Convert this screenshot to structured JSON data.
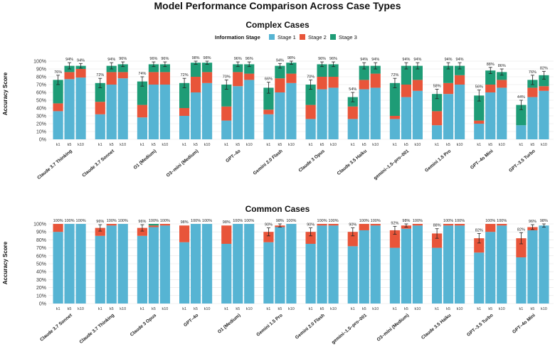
{
  "main_title": "Model Performance Comparison Across Case Types",
  "legend": {
    "title": "Information Stage",
    "entries": [
      {
        "name": "Stage 1",
        "color": "#56B4D3"
      },
      {
        "name": "Stage 2",
        "color": "#E8553A"
      },
      {
        "name": "Stage 3",
        "color": "#1E9C76"
      }
    ]
  },
  "chart_data": [
    {
      "type": "bar",
      "stacked": true,
      "title": "Complex Cases",
      "ylabel": "Accuracy Score",
      "ylim": [
        0,
        100
      ],
      "yticks": [
        "0%",
        "10%",
        "20%",
        "30%",
        "40%",
        "50%",
        "60%",
        "70%",
        "80%",
        "90%",
        "100%"
      ],
      "grid": true,
      "sub_categories": [
        "k1",
        "k5",
        "k10"
      ],
      "groups": [
        {
          "name": "Claude 3.7 Thinking",
          "bars": [
            {
              "k": "k1",
              "s1": 36,
              "s2": 10,
              "s3": 30,
              "err": 6,
              "label": "76%"
            },
            {
              "k": "k5",
              "s1": 77,
              "s2": 9,
              "s3": 8,
              "err": 4,
              "label": "94%"
            },
            {
              "k": "k10",
              "s1": 79,
              "s2": 11,
              "s3": 4,
              "err": 3,
              "label": "94%"
            }
          ]
        },
        {
          "name": "Claude 3.7 Sonnet",
          "bars": [
            {
              "k": "k1",
              "s1": 32,
              "s2": 16,
              "s3": 24,
              "err": 6,
              "label": "72%"
            },
            {
              "k": "k5",
              "s1": 70,
              "s2": 16,
              "s3": 8,
              "err": 4,
              "label": "94%"
            },
            {
              "k": "k10",
              "s1": 78,
              "s2": 8,
              "s3": 10,
              "err": 3,
              "label": "96%"
            }
          ]
        },
        {
          "name": "O1 (Medium)",
          "bars": [
            {
              "k": "k1",
              "s1": 28,
              "s2": 16,
              "s3": 30,
              "err": 6,
              "label": "74%"
            },
            {
              "k": "k5",
              "s1": 70,
              "s2": 16,
              "s3": 10,
              "err": 3,
              "label": "96%"
            },
            {
              "k": "k10",
              "s1": 70,
              "s2": 16,
              "s3": 10,
              "err": 3,
              "label": "96%"
            }
          ]
        },
        {
          "name": "O3–mini (Medium)",
          "bars": [
            {
              "k": "k1",
              "s1": 30,
              "s2": 10,
              "s3": 32,
              "err": 6,
              "label": "72%"
            },
            {
              "k": "k5",
              "s1": 60,
              "s2": 20,
              "s3": 18,
              "err": 2,
              "label": "98%"
            },
            {
              "k": "k10",
              "s1": 72,
              "s2": 14,
              "s3": 12,
              "err": 2,
              "label": "98%"
            }
          ]
        },
        {
          "name": "GPT–4o",
          "bars": [
            {
              "k": "k1",
              "s1": 24,
              "s2": 18,
              "s3": 28,
              "err": 6,
              "label": "70%"
            },
            {
              "k": "k5",
              "s1": 68,
              "s2": 18,
              "s3": 10,
              "err": 3,
              "label": "96%"
            },
            {
              "k": "k10",
              "s1": 76,
              "s2": 8,
              "s3": 12,
              "err": 3,
              "label": "96%"
            }
          ]
        },
        {
          "name": "Gemini 2.0 Flash",
          "bars": [
            {
              "k": "k1",
              "s1": 32,
              "s2": 6,
              "s3": 28,
              "err": 7,
              "label": "66%"
            },
            {
              "k": "k5",
              "s1": 60,
              "s2": 18,
              "s3": 16,
              "err": 3,
              "label": "94%"
            },
            {
              "k": "k10",
              "s1": 72,
              "s2": 12,
              "s3": 14,
              "err": 2,
              "label": "98%"
            }
          ]
        },
        {
          "name": "Claude 3 Opus",
          "bars": [
            {
              "k": "k1",
              "s1": 26,
              "s2": 18,
              "s3": 26,
              "err": 6,
              "label": "70%"
            },
            {
              "k": "k5",
              "s1": 64,
              "s2": 16,
              "s3": 16,
              "err": 3,
              "label": "96%"
            },
            {
              "k": "k10",
              "s1": 66,
              "s2": 14,
              "s3": 16,
              "err": 3,
              "label": "96%"
            }
          ]
        },
        {
          "name": "Claude 3.5 Haiku",
          "bars": [
            {
              "k": "k1",
              "s1": 26,
              "s2": 16,
              "s3": 12,
              "err": 6,
              "label": "54%"
            },
            {
              "k": "k5",
              "s1": 64,
              "s2": 12,
              "s3": 18,
              "err": 4,
              "label": "94%"
            },
            {
              "k": "k10",
              "s1": 66,
              "s2": 18,
              "s3": 10,
              "err": 4,
              "label": "94%"
            }
          ]
        },
        {
          "name": "gemini–1.5–pro–001",
          "bars": [
            {
              "k": "k1",
              "s1": 26,
              "s2": 4,
              "s3": 42,
              "err": 6,
              "label": "72%"
            },
            {
              "k": "k5",
              "s1": 54,
              "s2": 16,
              "s3": 24,
              "err": 4,
              "label": "94%"
            },
            {
              "k": "k10",
              "s1": 62,
              "s2": 14,
              "s3": 18,
              "err": 4,
              "label": "94%"
            }
          ]
        },
        {
          "name": "Gemini 1.5 Pro",
          "bars": [
            {
              "k": "k1",
              "s1": 18,
              "s2": 18,
              "s3": 22,
              "err": 6,
              "label": "58%"
            },
            {
              "k": "k5",
              "s1": 58,
              "s2": 14,
              "s3": 22,
              "err": 4,
              "label": "94%"
            },
            {
              "k": "k10",
              "s1": 70,
              "s2": 12,
              "s3": 12,
              "err": 4,
              "label": "94%"
            }
          ]
        },
        {
          "name": "GPT–4o Mini",
          "bars": [
            {
              "k": "k1",
              "s1": 20,
              "s2": 4,
              "s3": 32,
              "err": 7,
              "label": "56%"
            },
            {
              "k": "k5",
              "s1": 60,
              "s2": 10,
              "s3": 18,
              "err": 4,
              "label": "88%"
            },
            {
              "k": "k10",
              "s1": 66,
              "s2": 10,
              "s3": 10,
              "err": 4,
              "label": "86%"
            }
          ]
        },
        {
          "name": "GPT–3.5 Turbo",
          "bars": [
            {
              "k": "k1",
              "s1": 18,
              "s2": 0,
              "s3": 26,
              "err": 6,
              "label": "44%"
            },
            {
              "k": "k5",
              "s1": 54,
              "s2": 12,
              "s3": 10,
              "err": 6,
              "label": "76%"
            },
            {
              "k": "k10",
              "s1": 62,
              "s2": 6,
              "s3": 14,
              "err": 5,
              "label": "82%"
            }
          ]
        }
      ]
    },
    {
      "type": "bar",
      "stacked": true,
      "title": "Common Cases",
      "ylabel": "Accuracy Score",
      "ylim": [
        0,
        100
      ],
      "yticks": [
        "0%",
        "10%",
        "20%",
        "30%",
        "40%",
        "50%",
        "60%",
        "70%",
        "80%",
        "90%",
        "100%"
      ],
      "grid": true,
      "sub_categories": [
        "k1",
        "k5",
        "k10"
      ],
      "groups": [
        {
          "name": "Claude 3.7 Sonnet",
          "bars": [
            {
              "k": "k1",
              "s1": 90,
              "s2": 10,
              "s3": 0,
              "err": 0,
              "label": "100%"
            },
            {
              "k": "k5",
              "s1": 100,
              "s2": 0,
              "s3": 0,
              "err": 0,
              "label": "100%"
            },
            {
              "k": "k10",
              "s1": 100,
              "s2": 0,
              "s3": 0,
              "err": 0,
              "label": "100%"
            }
          ]
        },
        {
          "name": "Claude 3.7 Thinking",
          "bars": [
            {
              "k": "k1",
              "s1": 85,
              "s2": 10,
              "s3": 0,
              "err": 4,
              "label": "96%"
            },
            {
              "k": "k5",
              "s1": 98,
              "s2": 2,
              "s3": 0,
              "err": 0,
              "label": "100%"
            },
            {
              "k": "k10",
              "s1": 100,
              "s2": 0,
              "s3": 0,
              "err": 0,
              "label": "100%"
            }
          ]
        },
        {
          "name": "Claude 3 Opus",
          "bars": [
            {
              "k": "k1",
              "s1": 85,
              "s2": 10,
              "s3": 0,
              "err": 4,
              "label": "96%"
            },
            {
              "k": "k5",
              "s1": 96,
              "s2": 2,
              "s3": 2,
              "err": 0,
              "label": "100%"
            },
            {
              "k": "k10",
              "s1": 98,
              "s2": 2,
              "s3": 0,
              "err": 0,
              "label": "100%"
            }
          ]
        },
        {
          "name": "GPT–4o",
          "bars": [
            {
              "k": "k1",
              "s1": 77,
              "s2": 21,
              "s3": 0,
              "err": 0,
              "label": "98%"
            },
            {
              "k": "k5",
              "s1": 100,
              "s2": 0,
              "s3": 0,
              "err": 0,
              "label": "100%"
            },
            {
              "k": "k10",
              "s1": 100,
              "s2": 0,
              "s3": 0,
              "err": 0,
              "label": "100%"
            }
          ]
        },
        {
          "name": "O1 (Medium)",
          "bars": [
            {
              "k": "k1",
              "s1": 75,
              "s2": 23,
              "s3": 0,
              "err": 0,
              "label": "98%"
            },
            {
              "k": "k5",
              "s1": 100,
              "s2": 0,
              "s3": 0,
              "err": 0,
              "label": "100%"
            },
            {
              "k": "k10",
              "s1": 100,
              "s2": 0,
              "s3": 0,
              "err": 0,
              "label": "100%"
            }
          ]
        },
        {
          "name": "Gemini 1.5 Pro",
          "bars": [
            {
              "k": "k1",
              "s1": 77,
              "s2": 13,
              "s3": 0,
              "err": 5,
              "label": "90%"
            },
            {
              "k": "k5",
              "s1": 96,
              "s2": 2,
              "s3": 0,
              "err": 2,
              "label": "98%"
            },
            {
              "k": "k10",
              "s1": 100,
              "s2": 0,
              "s3": 0,
              "err": 0,
              "label": "100%"
            }
          ]
        },
        {
          "name": "Gemini 2.0 Flash",
          "bars": [
            {
              "k": "k1",
              "s1": 75,
              "s2": 15,
              "s3": 0,
              "err": 5,
              "label": "90%"
            },
            {
              "k": "k5",
              "s1": 98,
              "s2": 2,
              "s3": 0,
              "err": 0,
              "label": "100%"
            },
            {
              "k": "k10",
              "s1": 98,
              "s2": 2,
              "s3": 0,
              "err": 0,
              "label": "100%"
            }
          ]
        },
        {
          "name": "gemini–1.5–pro–001",
          "bars": [
            {
              "k": "k1",
              "s1": 72,
              "s2": 18,
              "s3": 0,
              "err": 5,
              "label": "90%"
            },
            {
              "k": "k5",
              "s1": 92,
              "s2": 8,
              "s3": 0,
              "err": 0,
              "label": "100%"
            },
            {
              "k": "k10",
              "s1": 98,
              "s2": 2,
              "s3": 0,
              "err": 0,
              "label": "100%"
            }
          ]
        },
        {
          "name": "O3–mini (Medium)",
          "bars": [
            {
              "k": "k1",
              "s1": 70,
              "s2": 22,
              "s3": 0,
              "err": 5,
              "label": "92%"
            },
            {
              "k": "k5",
              "s1": 94,
              "s2": 4,
              "s3": 0,
              "err": 2,
              "label": "98%"
            },
            {
              "k": "k10",
              "s1": 98,
              "s2": 2,
              "s3": 0,
              "err": 0,
              "label": "100%"
            }
          ]
        },
        {
          "name": "Claude 3.5 Haiku",
          "bars": [
            {
              "k": "k1",
              "s1": 70,
              "s2": 18,
              "s3": 0,
              "err": 6,
              "label": "88%"
            },
            {
              "k": "k5",
              "s1": 98,
              "s2": 2,
              "s3": 0,
              "err": 0,
              "label": "100%"
            },
            {
              "k": "k10",
              "s1": 98,
              "s2": 2,
              "s3": 0,
              "err": 0,
              "label": "100%"
            }
          ]
        },
        {
          "name": "GPT–3.5 Turbo",
          "bars": [
            {
              "k": "k1",
              "s1": 64,
              "s2": 18,
              "s3": 0,
              "err": 6,
              "label": "82%"
            },
            {
              "k": "k5",
              "s1": 90,
              "s2": 10,
              "s3": 0,
              "err": 0,
              "label": "100%"
            },
            {
              "k": "k10",
              "s1": 98,
              "s2": 2,
              "s3": 0,
              "err": 0,
              "label": "100%"
            }
          ]
        },
        {
          "name": "GPT–4o Mini",
          "bars": [
            {
              "k": "k1",
              "s1": 58,
              "s2": 24,
              "s3": 0,
              "err": 7,
              "label": "82%"
            },
            {
              "k": "k5",
              "s1": 92,
              "s2": 4,
              "s3": 0,
              "err": 3,
              "label": "96%"
            },
            {
              "k": "k10",
              "s1": 98,
              "s2": 0,
              "s3": 0,
              "err": 2,
              "label": "98%"
            }
          ]
        }
      ]
    }
  ]
}
